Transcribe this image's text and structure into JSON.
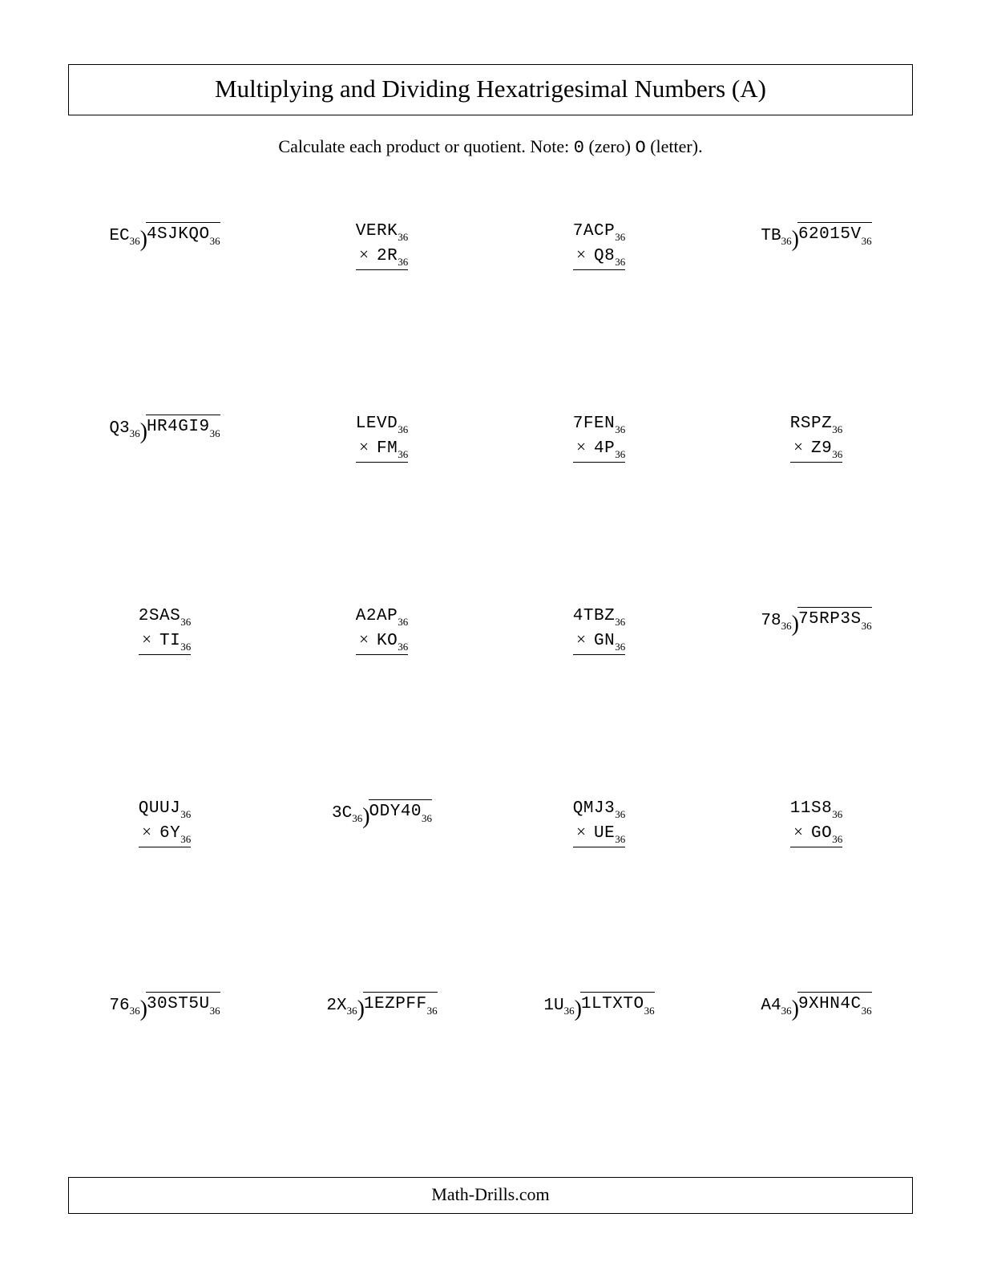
{
  "title": "Multiplying and Dividing Hexatrigesimal Numbers (A)",
  "instruction_pre": "Calculate each product or quotient. Note: ",
  "instruction_zero_glyph": "0",
  "instruction_zero_word": " (zero) ",
  "instruction_oh_glyph": "O",
  "instruction_oh_word": " (letter).",
  "base_label": "36",
  "footer": "Math-Drills.com",
  "problems": [
    {
      "type": "div",
      "divisor": "EC",
      "dividend": "4SJKQO"
    },
    {
      "type": "mult",
      "top": "VERK",
      "bottom": "2R"
    },
    {
      "type": "mult",
      "top": "7ACP",
      "bottom": "Q8"
    },
    {
      "type": "div",
      "divisor": "TB",
      "dividend": "62015V"
    },
    {
      "type": "div",
      "divisor": "Q3",
      "dividend": "HR4GI9"
    },
    {
      "type": "mult",
      "top": "LEVD",
      "bottom": "FM"
    },
    {
      "type": "mult",
      "top": "7FEN",
      "bottom": "4P"
    },
    {
      "type": "mult",
      "top": "RSPZ",
      "bottom": "Z9"
    },
    {
      "type": "mult",
      "top": "2SAS",
      "bottom": "TI"
    },
    {
      "type": "mult",
      "top": "A2AP",
      "bottom": "KO"
    },
    {
      "type": "mult",
      "top": "4TBZ",
      "bottom": "GN"
    },
    {
      "type": "div",
      "divisor": "78",
      "dividend": "75RP3S"
    },
    {
      "type": "mult",
      "top": "QUUJ",
      "bottom": "6Y"
    },
    {
      "type": "div",
      "divisor": "3C",
      "dividend": "ODY40"
    },
    {
      "type": "mult",
      "top": "QMJ3",
      "bottom": "UE"
    },
    {
      "type": "mult",
      "top": "11S8",
      "bottom": "GO"
    },
    {
      "type": "div",
      "divisor": "76",
      "dividend": "30ST5U"
    },
    {
      "type": "div",
      "divisor": "2X",
      "dividend": "1EZPFF"
    },
    {
      "type": "div",
      "divisor": "1U",
      "dividend": "1LTXTO"
    },
    {
      "type": "div",
      "divisor": "A4",
      "dividend": "9XHN4C"
    }
  ]
}
